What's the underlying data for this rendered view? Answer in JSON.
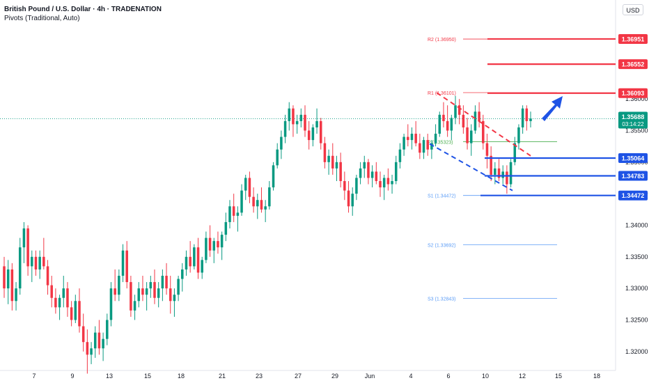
{
  "header": {
    "title": "British Pound / U.S. Dollar · 4h · TRADENATION",
    "indicator": "Pivots (Traditional, Auto)"
  },
  "currency": "USD",
  "colors": {
    "up": "#089981",
    "down": "#f23645",
    "support": "#1e53e5",
    "resistance": "#f23645",
    "pivot_label": "#5b9cf6",
    "price_tag": "#089981",
    "pp_green": "#4caf50"
  },
  "price_tag": {
    "value": "1.35688",
    "countdown": "03:14:22"
  },
  "chart_data": {
    "type": "candlestick",
    "ylim": [
      1.317,
      1.3748
    ],
    "y_ticks": [
      "1.32000",
      "1.32500",
      "1.33000",
      "1.33500",
      "1.34000",
      "1.34500",
      "1.35000",
      "1.35500",
      "1.36000"
    ],
    "x_ticks": [
      "7",
      "9",
      "13",
      "15",
      "18",
      "21",
      "23",
      "27",
      "29",
      "Jun",
      "4",
      "6",
      "10",
      "12",
      "15",
      "18"
    ],
    "pivots": [
      {
        "label": "R2 (1.36950)",
        "value": 1.3695
      },
      {
        "label": "R1 (1.36101)",
        "value": 1.36101
      },
      {
        "label": "P (1.35323)",
        "value": 1.35323
      },
      {
        "label": "S1 (1.34472)",
        "value": 1.34472
      },
      {
        "label": "S2 (1.33692)",
        "value": 1.33692
      },
      {
        "label": "S3 (1.32843)",
        "value": 1.32843
      }
    ],
    "resistance_levels": [
      "1.36951",
      "1.36552",
      "1.36093"
    ],
    "support_levels": [
      "1.35064",
      "1.34783",
      "1.34472"
    ],
    "last_price": 1.35688,
    "candles": [
      [
        1.3335,
        1.335,
        1.3285,
        1.33
      ],
      [
        1.33,
        1.3345,
        1.3275,
        1.333
      ],
      [
        1.333,
        1.334,
        1.3265,
        1.328
      ],
      [
        1.328,
        1.331,
        1.3265,
        1.33
      ],
      [
        1.33,
        1.338,
        1.329,
        1.3365
      ],
      [
        1.3365,
        1.3405,
        1.334,
        1.3395
      ],
      [
        1.3395,
        1.34,
        1.332,
        1.3335
      ],
      [
        1.3335,
        1.336,
        1.331,
        1.335
      ],
      [
        1.335,
        1.336,
        1.332,
        1.333
      ],
      [
        1.333,
        1.336,
        1.3315,
        1.335
      ],
      [
        1.335,
        1.338,
        1.333,
        1.3335
      ],
      [
        1.3335,
        1.3345,
        1.329,
        1.3305
      ],
      [
        1.3305,
        1.332,
        1.327,
        1.3285
      ],
      [
        1.3285,
        1.33,
        1.326,
        1.327
      ],
      [
        1.327,
        1.329,
        1.325,
        1.3285
      ],
      [
        1.3285,
        1.332,
        1.327,
        1.33
      ],
      [
        1.33,
        1.331,
        1.3255,
        1.327
      ],
      [
        1.327,
        1.328,
        1.324,
        1.325
      ],
      [
        1.325,
        1.329,
        1.3245,
        1.328
      ],
      [
        1.328,
        1.33,
        1.323,
        1.324
      ],
      [
        1.324,
        1.326,
        1.32,
        1.3215
      ],
      [
        1.3215,
        1.3235,
        1.3165,
        1.3195
      ],
      [
        1.3195,
        1.3215,
        1.318,
        1.3205
      ],
      [
        1.3205,
        1.324,
        1.319,
        1.323
      ],
      [
        1.323,
        1.325,
        1.3195,
        1.3205
      ],
      [
        1.3205,
        1.323,
        1.3185,
        1.322
      ],
      [
        1.322,
        1.326,
        1.321,
        1.325
      ],
      [
        1.325,
        1.331,
        1.324,
        1.33
      ],
      [
        1.33,
        1.333,
        1.328,
        1.329
      ],
      [
        1.329,
        1.333,
        1.328,
        1.332
      ],
      [
        1.332,
        1.337,
        1.331,
        1.336
      ],
      [
        1.336,
        1.3375,
        1.33,
        1.331
      ],
      [
        1.331,
        1.332,
        1.3255,
        1.3265
      ],
      [
        1.3265,
        1.329,
        1.325,
        1.328
      ],
      [
        1.328,
        1.331,
        1.327,
        1.33
      ],
      [
        1.33,
        1.332,
        1.328,
        1.329
      ],
      [
        1.329,
        1.331,
        1.3265,
        1.33
      ],
      [
        1.33,
        1.332,
        1.3285,
        1.331
      ],
      [
        1.331,
        1.333,
        1.3275,
        1.3285
      ],
      [
        1.3285,
        1.331,
        1.327,
        1.33
      ],
      [
        1.33,
        1.333,
        1.328,
        1.332
      ],
      [
        1.332,
        1.334,
        1.329,
        1.33
      ],
      [
        1.33,
        1.332,
        1.326,
        1.328
      ],
      [
        1.328,
        1.33,
        1.3255,
        1.329
      ],
      [
        1.329,
        1.332,
        1.328,
        1.3315
      ],
      [
        1.3315,
        1.334,
        1.3295,
        1.333
      ],
      [
        1.333,
        1.336,
        1.332,
        1.335
      ],
      [
        1.335,
        1.3375,
        1.3325,
        1.3335
      ],
      [
        1.3335,
        1.337,
        1.333,
        1.3365
      ],
      [
        1.3365,
        1.338,
        1.3315,
        1.3325
      ],
      [
        1.3325,
        1.335,
        1.3315,
        1.3345
      ],
      [
        1.3345,
        1.339,
        1.334,
        1.338
      ],
      [
        1.338,
        1.34,
        1.335,
        1.336
      ],
      [
        1.336,
        1.338,
        1.334,
        1.3375
      ],
      [
        1.3375,
        1.339,
        1.3355,
        1.3365
      ],
      [
        1.3365,
        1.339,
        1.3345,
        1.3385
      ],
      [
        1.3385,
        1.342,
        1.3375,
        1.3405
      ],
      [
        1.3405,
        1.344,
        1.3395,
        1.343
      ],
      [
        1.343,
        1.345,
        1.3405,
        1.3415
      ],
      [
        1.3415,
        1.343,
        1.339,
        1.342
      ],
      [
        1.342,
        1.3465,
        1.3415,
        1.3455
      ],
      [
        1.3455,
        1.348,
        1.344,
        1.3475
      ],
      [
        1.3475,
        1.3485,
        1.3435,
        1.3445
      ],
      [
        1.3445,
        1.346,
        1.342,
        1.343
      ],
      [
        1.343,
        1.345,
        1.341,
        1.344
      ],
      [
        1.344,
        1.346,
        1.342,
        1.3425
      ],
      [
        1.3425,
        1.344,
        1.3405,
        1.343
      ],
      [
        1.343,
        1.347,
        1.3425,
        1.346
      ],
      [
        1.346,
        1.35,
        1.3455,
        1.3495
      ],
      [
        1.3495,
        1.353,
        1.349,
        1.352
      ],
      [
        1.352,
        1.355,
        1.3505,
        1.354
      ],
      [
        1.354,
        1.3575,
        1.353,
        1.3565
      ],
      [
        1.3565,
        1.3595,
        1.355,
        1.3585
      ],
      [
        1.3585,
        1.359,
        1.354,
        1.356
      ],
      [
        1.356,
        1.3575,
        1.3545,
        1.3565
      ],
      [
        1.3565,
        1.3585,
        1.3555,
        1.3575
      ],
      [
        1.3575,
        1.359,
        1.354,
        1.355
      ],
      [
        1.355,
        1.3565,
        1.352,
        1.3535
      ],
      [
        1.3535,
        1.356,
        1.3525,
        1.3555
      ],
      [
        1.3555,
        1.3585,
        1.3545,
        1.3565
      ],
      [
        1.3565,
        1.357,
        1.352,
        1.353
      ],
      [
        1.353,
        1.354,
        1.349,
        1.35
      ],
      [
        1.35,
        1.352,
        1.348,
        1.351
      ],
      [
        1.351,
        1.353,
        1.348,
        1.349
      ],
      [
        1.349,
        1.351,
        1.347,
        1.35
      ],
      [
        1.35,
        1.3515,
        1.346,
        1.347
      ],
      [
        1.347,
        1.3485,
        1.344,
        1.3455
      ],
      [
        1.3455,
        1.347,
        1.342,
        1.343
      ],
      [
        1.343,
        1.346,
        1.3415,
        1.345
      ],
      [
        1.345,
        1.348,
        1.344,
        1.3475
      ],
      [
        1.3475,
        1.35,
        1.3465,
        1.349
      ],
      [
        1.349,
        1.351,
        1.3475,
        1.35
      ],
      [
        1.35,
        1.3505,
        1.3465,
        1.3475
      ],
      [
        1.3475,
        1.3495,
        1.346,
        1.3485
      ],
      [
        1.3485,
        1.35,
        1.3465,
        1.347
      ],
      [
        1.347,
        1.3485,
        1.3445,
        1.346
      ],
      [
        1.346,
        1.348,
        1.344,
        1.3475
      ],
      [
        1.3475,
        1.349,
        1.3455,
        1.3465
      ],
      [
        1.3465,
        1.348,
        1.345,
        1.347
      ],
      [
        1.347,
        1.351,
        1.3465,
        1.35
      ],
      [
        1.35,
        1.353,
        1.349,
        1.352
      ],
      [
        1.352,
        1.3545,
        1.351,
        1.354
      ],
      [
        1.354,
        1.356,
        1.3525,
        1.3535
      ],
      [
        1.3535,
        1.3555,
        1.352,
        1.3545
      ],
      [
        1.3545,
        1.3565,
        1.3525,
        1.353
      ],
      [
        1.353,
        1.3545,
        1.3505,
        1.3515
      ],
      [
        1.3515,
        1.354,
        1.3505,
        1.3535
      ],
      [
        1.3535,
        1.3545,
        1.351,
        1.352
      ],
      [
        1.352,
        1.3535,
        1.3505,
        1.353
      ],
      [
        1.353,
        1.356,
        1.3525,
        1.3545
      ],
      [
        1.3545,
        1.358,
        1.354,
        1.3575
      ],
      [
        1.3575,
        1.3595,
        1.3555,
        1.3565
      ],
      [
        1.3565,
        1.359,
        1.354,
        1.355
      ],
      [
        1.355,
        1.3575,
        1.3535,
        1.357
      ],
      [
        1.357,
        1.3605,
        1.356,
        1.359
      ],
      [
        1.359,
        1.36,
        1.356,
        1.3575
      ],
      [
        1.3575,
        1.359,
        1.3545,
        1.3555
      ],
      [
        1.3555,
        1.357,
        1.352,
        1.353
      ],
      [
        1.353,
        1.356,
        1.351,
        1.355
      ],
      [
        1.355,
        1.359,
        1.3545,
        1.358
      ],
      [
        1.358,
        1.3595,
        1.3555,
        1.3565
      ],
      [
        1.3565,
        1.3575,
        1.352,
        1.353
      ],
      [
        1.353,
        1.3545,
        1.349,
        1.351
      ],
      [
        1.351,
        1.3525,
        1.347,
        1.348
      ],
      [
        1.348,
        1.35,
        1.3465,
        1.349
      ],
      [
        1.349,
        1.3505,
        1.347,
        1.3475
      ],
      [
        1.3475,
        1.3495,
        1.3465,
        1.3485
      ],
      [
        1.3485,
        1.3495,
        1.345,
        1.3465
      ],
      [
        1.3465,
        1.3505,
        1.346,
        1.35
      ],
      [
        1.35,
        1.354,
        1.3495,
        1.353
      ],
      [
        1.353,
        1.356,
        1.352,
        1.3555
      ],
      [
        1.3555,
        1.359,
        1.3545,
        1.3585
      ],
      [
        1.3585,
        1.359,
        1.355,
        1.3565
      ],
      [
        1.3565,
        1.358,
        1.3555,
        1.3569
      ]
    ]
  }
}
